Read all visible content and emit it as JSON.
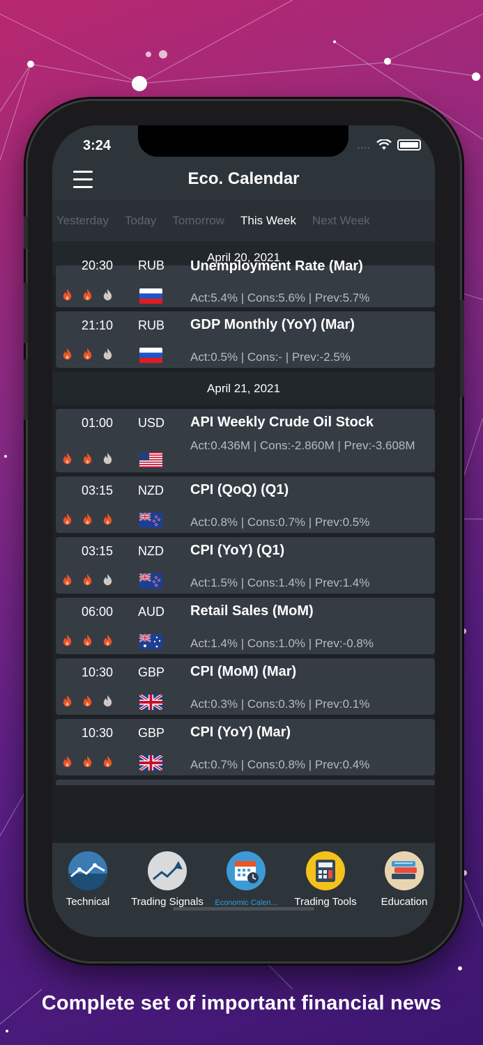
{
  "status": {
    "time": "3:24",
    "signal": "....",
    "wifi_icon": "wifi-icon",
    "battery_icon": "battery-icon"
  },
  "header": {
    "title": "Eco. Calendar",
    "menu_icon": "hamburger-icon"
  },
  "tabs": [
    {
      "label": "Yesterday",
      "active": false
    },
    {
      "label": "Today",
      "active": false
    },
    {
      "label": "Tomorrow",
      "active": false
    },
    {
      "label": "This Week",
      "active": true
    },
    {
      "label": "Next Week",
      "active": false
    }
  ],
  "groups": [
    {
      "date": "April 20, 2021",
      "events": [
        {
          "time": "20:30",
          "currency": "RUB",
          "flag": "ru",
          "title": "Unemployment Rate (Mar)",
          "values": "Act:5.4% | Cons:5.6% | Prev:5.7%",
          "impact": 2
        },
        {
          "time": "21:10",
          "currency": "RUB",
          "flag": "ru",
          "title": "GDP Monthly (YoY) (Mar)",
          "values": "Act:0.5% | Cons:- | Prev:-2.5%",
          "impact": 2
        }
      ]
    },
    {
      "date": "April 21, 2021",
      "events": [
        {
          "time": "01:00",
          "currency": "USD",
          "flag": "us",
          "title": "API Weekly Crude Oil Stock",
          "values": "Act:0.436M | Cons:-2.860M | Prev:-3.608M",
          "impact": 2
        },
        {
          "time": "03:15",
          "currency": "NZD",
          "flag": "nz",
          "title": "CPI (QoQ) (Q1)",
          "values": "Act:0.8% | Cons:0.7% | Prev:0.5%",
          "impact": 3
        },
        {
          "time": "03:15",
          "currency": "NZD",
          "flag": "nz",
          "title": "CPI (YoY) (Q1)",
          "values": "Act:1.5% | Cons:1.4% | Prev:1.4%",
          "impact": 2
        },
        {
          "time": "06:00",
          "currency": "AUD",
          "flag": "au",
          "title": "Retail Sales (MoM)",
          "values": "Act:1.4% | Cons:1.0% | Prev:-0.8%",
          "impact": 3
        },
        {
          "time": "10:30",
          "currency": "GBP",
          "flag": "gb",
          "title": "CPI (MoM) (Mar)",
          "values": "Act:0.3% | Cons:0.3% | Prev:0.1%",
          "impact": 2
        },
        {
          "time": "10:30",
          "currency": "GBP",
          "flag": "gb",
          "title": "CPI (YoY) (Mar)",
          "values": "Act:0.7% | Cons:0.8% | Prev:0.4%",
          "impact": 3
        }
      ]
    }
  ],
  "tabbar": [
    {
      "label": "Technical",
      "icon": "chart-line-icon",
      "active": false
    },
    {
      "label": "Trading Signals",
      "icon": "trend-arrow-icon",
      "active": false
    },
    {
      "label": "Economic Calen...",
      "icon": "calendar-icon",
      "active": true
    },
    {
      "label": "Trading Tools",
      "icon": "calculator-icon",
      "active": false
    },
    {
      "label": "Education",
      "icon": "books-icon",
      "active": false
    }
  ],
  "colors": {
    "flame_active": "#e8562a",
    "flame_inactive": "#c9ccd0",
    "active_tab": "#2f9fe0"
  },
  "caption": "Complete set of important financial news"
}
